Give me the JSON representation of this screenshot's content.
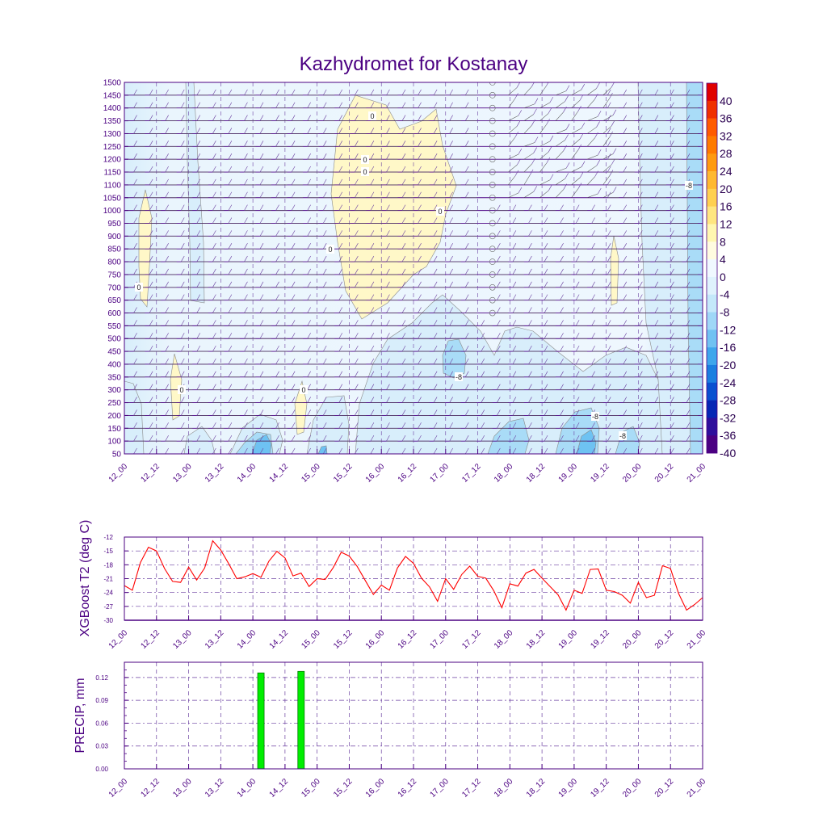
{
  "title": "Kazhydromet for Kostanay",
  "time_labels": [
    "12_00",
    "12_12",
    "13_00",
    "13_12",
    "14_00",
    "14_12",
    "15_00",
    "15_12",
    "16_00",
    "16_12",
    "17_00",
    "17_12",
    "18_00",
    "18_12",
    "19_00",
    "19_12",
    "20_00",
    "20_12",
    "21_00"
  ],
  "colors": {
    "text": "#4b0082",
    "grid": "#6a3fa0",
    "t2_line": "#ff0000",
    "precip_bar": "#00ee00"
  },
  "chart_data": [
    {
      "type": "heatmap",
      "name": "cross-section",
      "title": "Kazhydromet for Kostanay",
      "y_ticks": [
        "1500",
        "1450",
        "1400",
        "1350",
        "1300",
        "1250",
        "1200",
        "1150",
        "1100",
        "1050",
        "1000",
        "950",
        "900",
        "850",
        "800",
        "750",
        "700",
        "650",
        "600",
        "550",
        "500",
        "450",
        "400",
        "350",
        "300",
        "250",
        "200",
        "150",
        "100",
        "50"
      ],
      "ylim": [
        50,
        1500
      ],
      "colorbar": {
        "labels": [
          "40",
          "36",
          "32",
          "28",
          "24",
          "20",
          "16",
          "12",
          "8",
          "4",
          "0",
          "-4",
          "-8",
          "-12",
          "-16",
          "-20",
          "-24",
          "-28",
          "-32",
          "-36",
          "-40"
        ],
        "colors": [
          "#e00000",
          "#f03000",
          "#ff5a00",
          "#ff7a00",
          "#ff9a10",
          "#ffb830",
          "#ffd050",
          "#ffe680",
          "#fff7b0",
          "#fffbe0",
          "#f0f8ff",
          "#dff2fd",
          "#c4e8fa",
          "#9fd7f7",
          "#70c2f2",
          "#3ea6ec",
          "#1b7fe0",
          "#0a50d0",
          "#0626b4",
          "#2f0f9c",
          "#4b0082"
        ]
      },
      "contour_labels": [
        "0",
        "0",
        "0",
        "0",
        "0",
        "0",
        "0",
        "0",
        "-8",
        "-8",
        "-8",
        "-8"
      ]
    },
    {
      "type": "line",
      "name": "XGBoost T2",
      "ylabel": "XGBoost T2 (deg C)",
      "y_ticks": [
        "-12",
        "-15",
        "-18",
        "-21",
        "-24",
        "-27",
        "-30"
      ],
      "ylim": [
        -30,
        -12
      ],
      "x": [
        0,
        3,
        6,
        9,
        12,
        15,
        18,
        21,
        24,
        27,
        30,
        33,
        36,
        39,
        42,
        45,
        48,
        51,
        54,
        57,
        60,
        63,
        66,
        69,
        72,
        75,
        78,
        81,
        84,
        87,
        90,
        93,
        96,
        99,
        102,
        105,
        108,
        111,
        114,
        117,
        120,
        123,
        126,
        129,
        132,
        135,
        138,
        141,
        144,
        147,
        150,
        153,
        156,
        159,
        162,
        165,
        168,
        171,
        174,
        177,
        180,
        183,
        186,
        189,
        192,
        195,
        198,
        201,
        204,
        207,
        210,
        213,
        216
      ],
      "values": [
        -22.5,
        -23.5,
        -17.5,
        -14.2,
        -15.0,
        -18.8,
        -21.6,
        -21.8,
        -18.5,
        -21.3,
        -18.7,
        -12.8,
        -14.8,
        -17.8,
        -21.0,
        -20.6,
        -19.9,
        -20.7,
        -17.2,
        -15.1,
        -16.5,
        -20.4,
        -19.8,
        -22.7,
        -21.0,
        -21.2,
        -18.6,
        -15.3,
        -16.1,
        -18.4,
        -21.4,
        -24.4,
        -22.4,
        -23.5,
        -18.7,
        -16.2,
        -17.7,
        -20.9,
        -22.8,
        -25.9,
        -21.0,
        -23.3,
        -20.1,
        -18.3,
        -20.5,
        -20.9,
        -23.6,
        -27.3,
        -22.1,
        -22.6,
        -19.8,
        -19.0,
        -20.9,
        -22.7,
        -24.5,
        -27.8,
        -23.5,
        -24.2,
        -19.0,
        -18.9,
        -23.5,
        -23.8,
        -24.6,
        -26.3,
        -21.8,
        -25.1,
        -24.6,
        -18.2,
        -18.8,
        -24.2,
        -27.8,
        -26.6,
        -25.1
      ]
    },
    {
      "type": "bar",
      "name": "PRECIP",
      "ylabel": "PRECIP, mm",
      "y_ticks": [
        "0.12",
        "0.09",
        "0.06",
        "0.03",
        "0.00"
      ],
      "ylim": [
        0,
        0.14
      ],
      "bars": [
        {
          "x": 51,
          "value": 0.126
        },
        {
          "x": 66,
          "value": 0.128
        }
      ]
    }
  ]
}
